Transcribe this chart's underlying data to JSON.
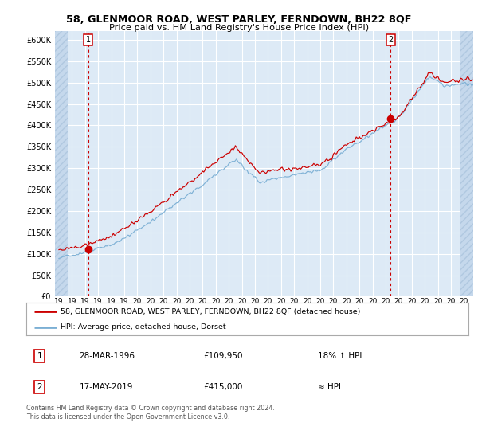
{
  "title": "58, GLENMOOR ROAD, WEST PARLEY, FERNDOWN, BH22 8QF",
  "subtitle": "Price paid vs. HM Land Registry's House Price Index (HPI)",
  "bg_color": "#ddeaf6",
  "hatch_color": "#c5d8ec",
  "red_color": "#cc0000",
  "blue_color": "#7bafd4",
  "grid_color": "#ffffff",
  "ylim": [
    0,
    620000
  ],
  "yticks": [
    0,
    50000,
    100000,
    150000,
    200000,
    250000,
    300000,
    350000,
    400000,
    450000,
    500000,
    550000,
    600000
  ],
  "xlim_start": 1993.7,
  "xlim_end": 2025.7,
  "sale1_x": 1996.24,
  "sale1_y": 109950,
  "sale2_x": 2019.38,
  "sale2_y": 415000,
  "legend_line1": "58, GLENMOOR ROAD, WEST PARLEY, FERNDOWN, BH22 8QF (detached house)",
  "legend_line2": "HPI: Average price, detached house, Dorset",
  "table_row1": [
    "1",
    "28-MAR-1996",
    "£109,950",
    "18% ↑ HPI"
  ],
  "table_row2": [
    "2",
    "17-MAY-2019",
    "£415,000",
    "≈ HPI"
  ],
  "footnote": "Contains HM Land Registry data © Crown copyright and database right 2024.\nThis data is licensed under the Open Government Licence v3.0.",
  "xtick_years": [
    1994,
    1995,
    1996,
    1997,
    1998,
    1999,
    2000,
    2001,
    2002,
    2003,
    2004,
    2005,
    2006,
    2007,
    2008,
    2009,
    2010,
    2011,
    2012,
    2013,
    2014,
    2015,
    2016,
    2017,
    2018,
    2019,
    2020,
    2021,
    2022,
    2023,
    2024,
    2025
  ]
}
